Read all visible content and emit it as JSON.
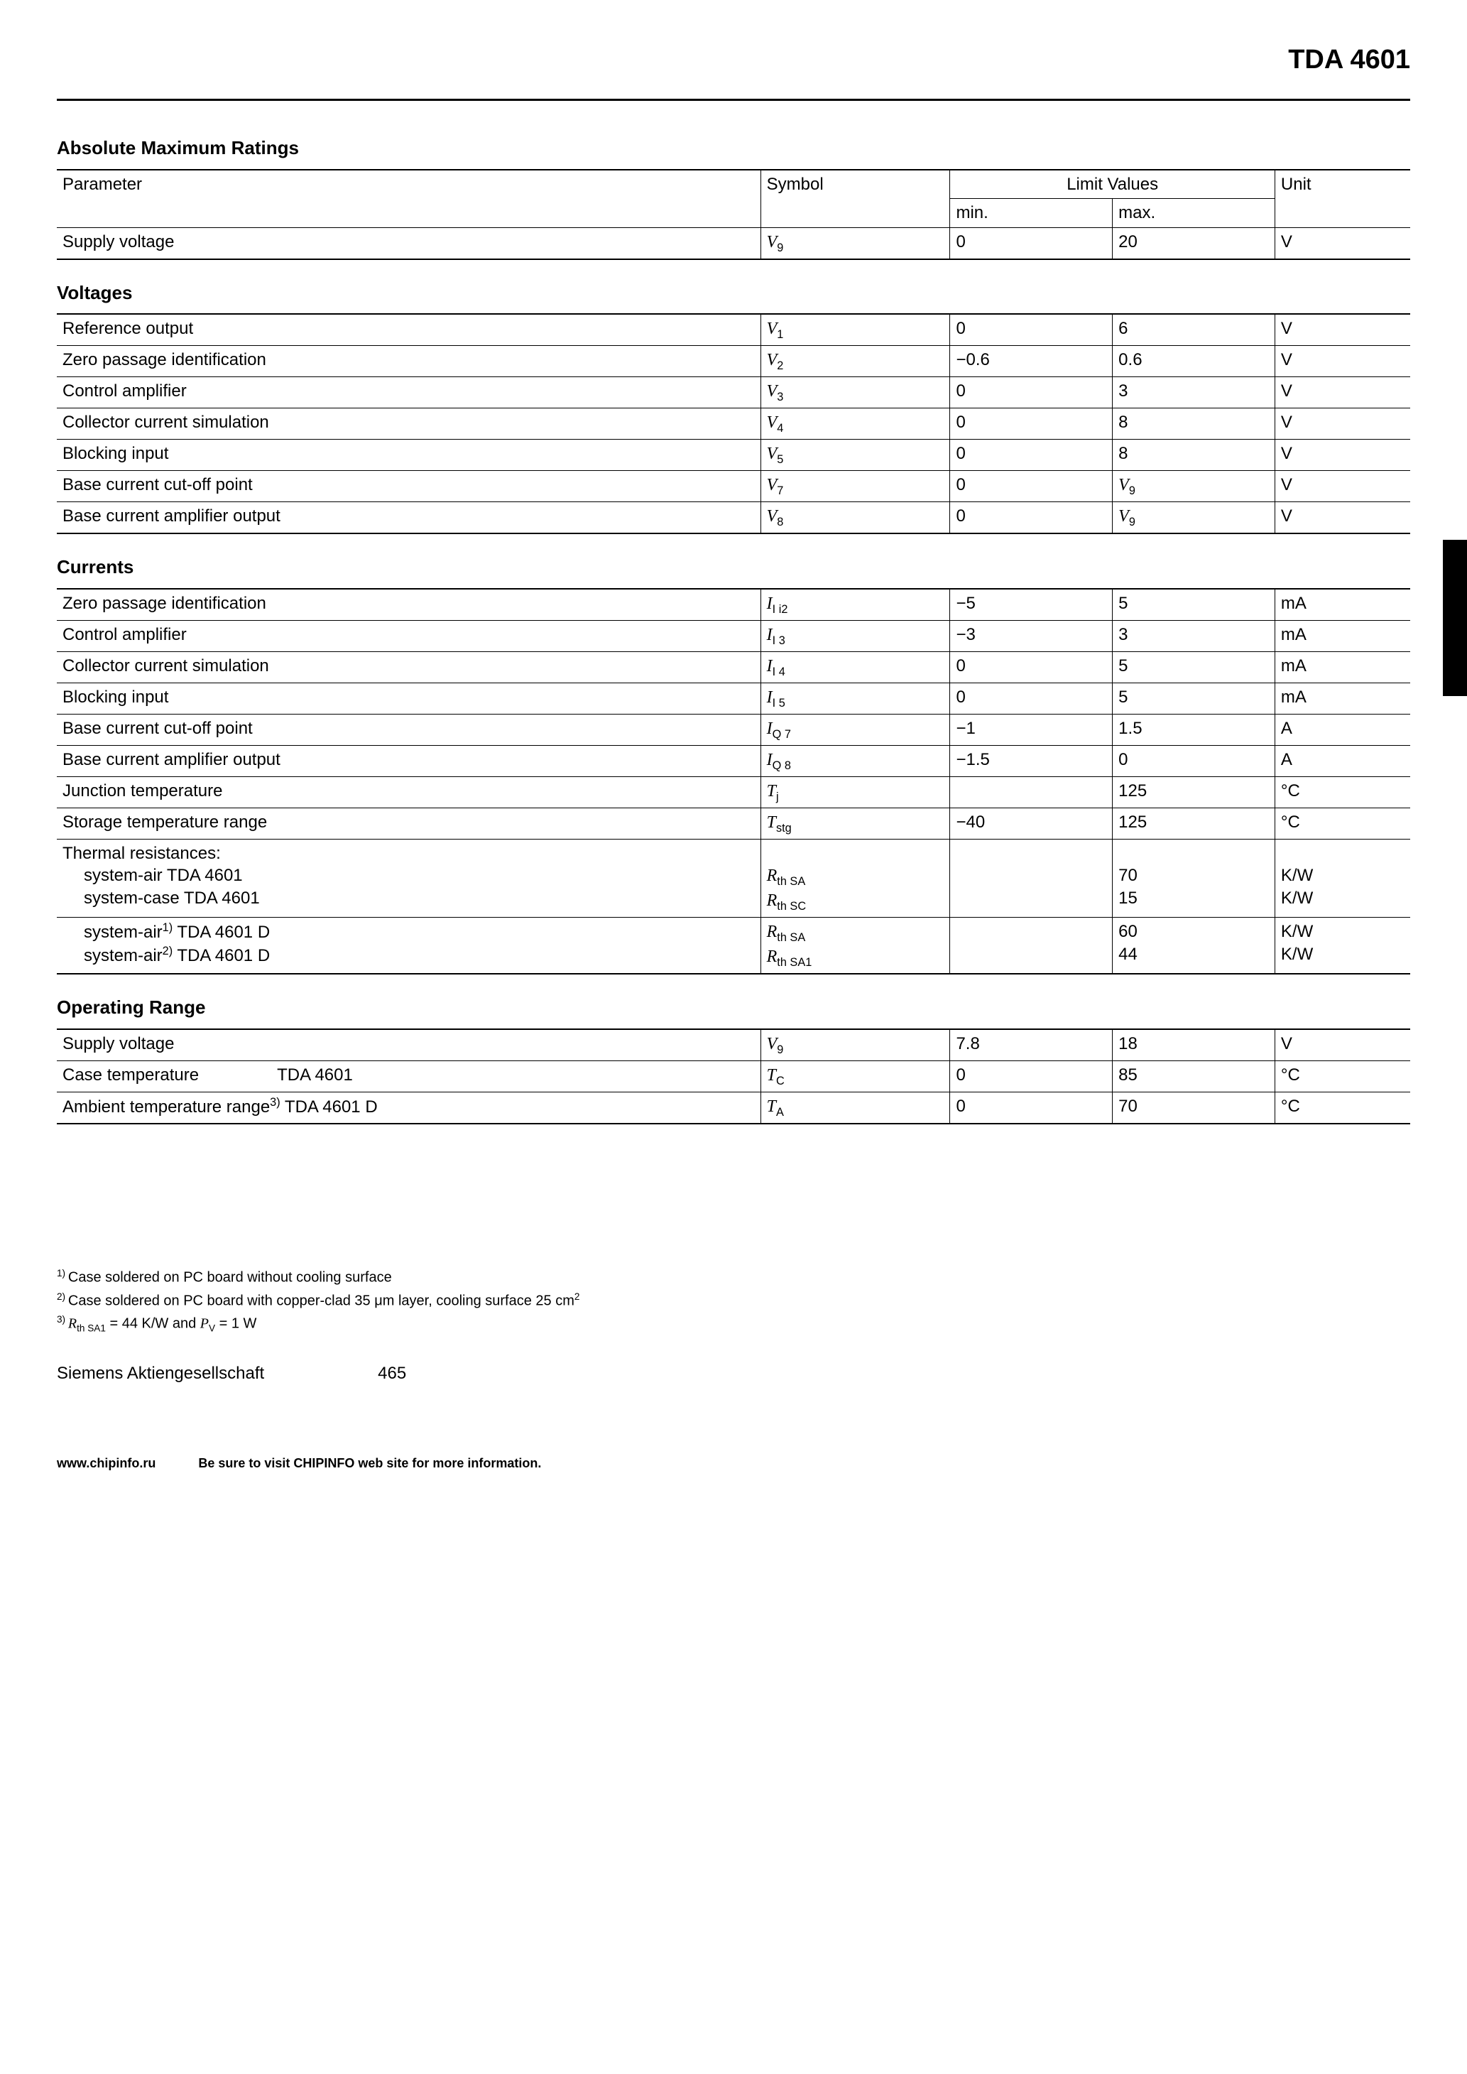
{
  "page": {
    "title": "TDA 4601",
    "section_absmax": "Absolute Maximum Ratings",
    "hdr_parameter": "Parameter",
    "hdr_symbol": "Symbol",
    "hdr_limit": "Limit Values",
    "hdr_min": "min.",
    "hdr_max": "max.",
    "hdr_unit": "Unit"
  },
  "absmax": {
    "rows": [
      {
        "param": "Supply voltage",
        "sym_base": "V",
        "sym_sub": "9",
        "min": "0",
        "max": "20",
        "unit": "V"
      }
    ]
  },
  "voltages": {
    "title": "Voltages",
    "rows": [
      {
        "param": "Reference output",
        "sym_base": "V",
        "sym_sub": "1",
        "min": "0",
        "max": "6",
        "unit": "V",
        "max_is_sym": false
      },
      {
        "param": "Zero passage identification",
        "sym_base": "V",
        "sym_sub": "2",
        "min": "−0.6",
        "max": "0.6",
        "unit": "V",
        "max_is_sym": false
      },
      {
        "param": "Control amplifier",
        "sym_base": "V",
        "sym_sub": "3",
        "min": "0",
        "max": "3",
        "unit": "V",
        "max_is_sym": false
      },
      {
        "param": "Collector current simulation",
        "sym_base": "V",
        "sym_sub": "4",
        "min": "0",
        "max": "8",
        "unit": "V",
        "max_is_sym": false
      },
      {
        "param": "Blocking input",
        "sym_base": "V",
        "sym_sub": "5",
        "min": "0",
        "max": "8",
        "unit": "V",
        "max_is_sym": false
      },
      {
        "param": "Base current cut-off point",
        "sym_base": "V",
        "sym_sub": "7",
        "min": "0",
        "max_base": "V",
        "max_sub": "9",
        "unit": "V",
        "max_is_sym": true
      },
      {
        "param": "Base current amplifier output",
        "sym_base": "V",
        "sym_sub": "8",
        "min": "0",
        "max_base": "V",
        "max_sub": "9",
        "unit": "V",
        "max_is_sym": true
      }
    ]
  },
  "currents": {
    "title": "Currents",
    "rows": [
      {
        "param": "Zero passage identification",
        "sym_base": "I",
        "sym_sub": "I i2",
        "min": "−5",
        "max": "5",
        "unit": "mA"
      },
      {
        "param": "Control amplifier",
        "sym_base": "I",
        "sym_sub": "I 3",
        "min": "−3",
        "max": "3",
        "unit": "mA"
      },
      {
        "param": "Collector current simulation",
        "sym_base": "I",
        "sym_sub": "I 4",
        "min": "0",
        "max": "5",
        "unit": "mA"
      },
      {
        "param": "Blocking input",
        "sym_base": "I",
        "sym_sub": "I 5",
        "min": "0",
        "max": "5",
        "unit": "mA"
      },
      {
        "param": "Base current cut-off point",
        "sym_base": "I",
        "sym_sub": "Q 7",
        "min": "−1",
        "max": "1.5",
        "unit": "A"
      },
      {
        "param": "Base current amplifier output",
        "sym_base": "I",
        "sym_sub": "Q 8",
        "min": "−1.5",
        "max": "0",
        "unit": "A"
      },
      {
        "param": "Junction temperature",
        "sym_base": "T",
        "sym_sub": "j",
        "min": "",
        "max": "125",
        "unit": "°C"
      },
      {
        "param": "Storage temperature range",
        "sym_base": "T",
        "sym_sub": "stg",
        "min": "−40",
        "max": "125",
        "unit": "°C"
      }
    ],
    "thermal_label": "Thermal resistances:",
    "thermal_group1": [
      {
        "param": "system-air    TDA 4601",
        "sym_base": "R",
        "sym_sub": "th SA",
        "max": "70",
        "unit": "K/W"
      },
      {
        "param": "system-case  TDA 4601",
        "sym_base": "R",
        "sym_sub": "th SC",
        "max": "15",
        "unit": "K/W"
      }
    ],
    "thermal_group2": [
      {
        "param_pre": "system-air",
        "sup": "1)",
        "param_post": "   TDA 4601 D",
        "sym_base": "R",
        "sym_sub": "th SA",
        "max": "60",
        "unit": "K/W"
      },
      {
        "param_pre": "system-air",
        "sup": "2)",
        "param_post": "   TDA 4601 D",
        "sym_base": "R",
        "sym_sub": "th SA1",
        "max": "44",
        "unit": "K/W"
      }
    ]
  },
  "operating": {
    "title": "Operating Range",
    "rows": [
      {
        "param": "Supply voltage",
        "extra": "",
        "sym_base": "V",
        "sym_sub": "9",
        "min": "7.8",
        "max": "18",
        "unit": "V"
      },
      {
        "param": "Case temperature",
        "extra": "TDA 4601",
        "sym_base": "T",
        "sym_sub": "C",
        "min": "0",
        "max": "85",
        "unit": "°C"
      },
      {
        "param_pre": "Ambient temperature range",
        "sup": "3)",
        "extra": " TDA 4601 D",
        "sym_base": "T",
        "sym_sub": "A",
        "min": "0",
        "max": "70",
        "unit": "°C"
      }
    ]
  },
  "footnotes": {
    "f1_pre": "1) ",
    "f1": "Case soldered on PC board without cooling surface",
    "f2_pre": "2) ",
    "f2_a": "Case soldered on PC board with copper-clad 35 ",
    "f2_b": "μm layer, cooling surface 25 cm",
    "f2_sup": "2",
    "f3_pre": "3) ",
    "f3_a": "R",
    "f3_sub": "th SA1",
    "f3_b": " = 44 K/W and ",
    "f3_c": "P",
    "f3_sub2": "V",
    "f3_d": " = 1 W"
  },
  "footer": {
    "company": "Siemens Aktiengesellschaft",
    "page_no": "465",
    "url": "www.chipinfo.ru",
    "msg": "Be sure to visit CHIPINFO web site for more information."
  }
}
